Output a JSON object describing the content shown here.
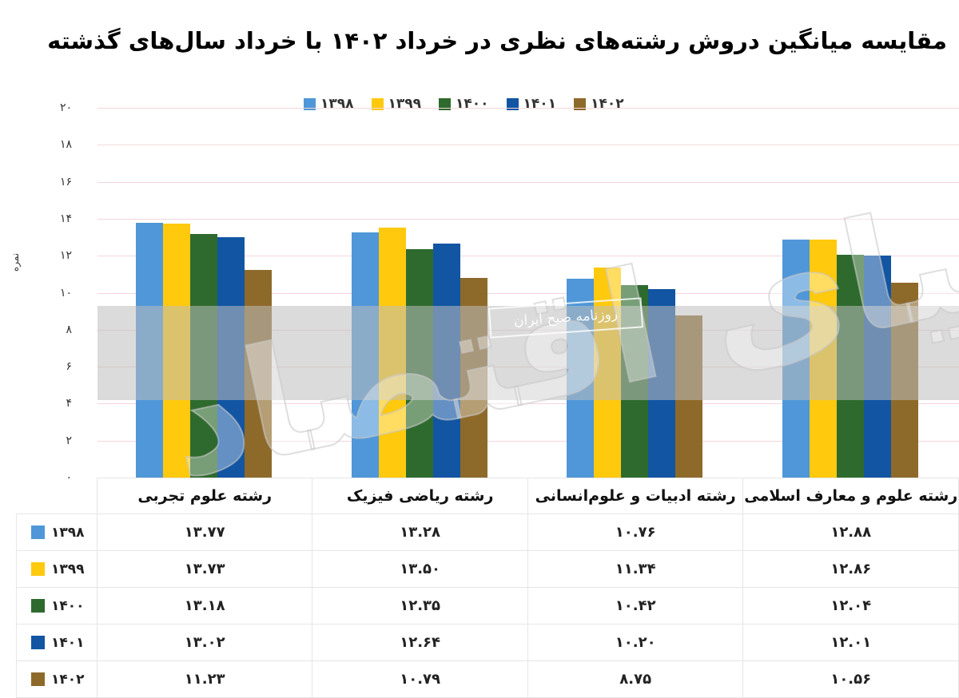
{
  "title": "مقایسه میانگین دروش رشته‌های نظری در خرداد ۱۴۰۲ با خرداد سال‌های گذشته",
  "watermarks": {
    "large_text": "دنیای اقتصاد",
    "stamp_text": "روزنامه صبح ایران"
  },
  "legend": [
    {
      "label": "۱۳۹۸",
      "color": "#4f97d8"
    },
    {
      "label": "۱۳۹۹",
      "color": "#ffc90e"
    },
    {
      "label": "۱۴۰۰",
      "color": "#2e6a2e"
    },
    {
      "label": "۱۴۰۱",
      "color": "#1155a3"
    },
    {
      "label": "۱۴۰۲",
      "color": "#8e6a2a"
    }
  ],
  "y_axis": {
    "label": "نمره",
    "ticks": [
      "۰",
      "۲",
      "۴",
      "۶",
      "۸",
      "۱۰",
      "۱۲",
      "۱۴",
      "۱۶",
      "۱۸",
      "۲۰"
    ]
  },
  "table": {
    "headers": [
      "رشته علوم تجربی",
      "رشته ریاضی فیزیک",
      "رشته ادبیات و علوم‌انسانی",
      "رشته علوم و معارف اسلامی"
    ],
    "rows": [
      {
        "year": "۱۳۹۸",
        "values": [
          "۱۳.۷۷",
          "۱۳.۲۸",
          "۱۰.۷۶",
          "۱۲.۸۸"
        ]
      },
      {
        "year": "۱۳۹۹",
        "values": [
          "۱۳.۷۳",
          "۱۳.۵۰",
          "۱۱.۳۴",
          "۱۲.۸۶"
        ]
      },
      {
        "year": "۱۴۰۰",
        "values": [
          "۱۳.۱۸",
          "۱۲.۳۵",
          "۱۰.۴۲",
          "۱۲.۰۴"
        ]
      },
      {
        "year": "۱۴۰۱",
        "values": [
          "۱۳.۰۲",
          "۱۲.۶۴",
          "۱۰.۲۰",
          "۱۲.۰۱"
        ]
      },
      {
        "year": "۱۴۰۲",
        "values": [
          "۱۱.۲۳",
          "۱۰.۷۹",
          "۸.۷۵",
          "۱۰.۵۶"
        ]
      }
    ]
  },
  "chart_data": {
    "type": "bar",
    "title": "مقایسه میانگین دروش رشته‌های نظری در خرداد ۱۴۰۲ با خرداد سال‌های گذشته",
    "xlabel": "",
    "ylabel": "نمره",
    "ylim": [
      0,
      20
    ],
    "yticks": [
      0,
      2,
      4,
      6,
      8,
      10,
      12,
      14,
      16,
      18,
      20
    ],
    "grid": true,
    "legend_position": "top",
    "categories": [
      "رشته علوم تجربی",
      "رشته ریاضی فیزیک",
      "رشته ادبیات و علوم‌انسانی",
      "رشته علوم و معارف اسلامی"
    ],
    "series": [
      {
        "name": "1398",
        "color": "#4f97d8",
        "values": [
          13.77,
          13.28,
          10.76,
          12.88
        ]
      },
      {
        "name": "1399",
        "color": "#ffc90e",
        "values": [
          13.73,
          13.5,
          11.34,
          12.86
        ]
      },
      {
        "name": "1400",
        "color": "#2e6a2e",
        "values": [
          13.18,
          12.35,
          10.42,
          12.04
        ]
      },
      {
        "name": "1401",
        "color": "#1155a3",
        "values": [
          13.02,
          12.64,
          10.2,
          12.01
        ]
      },
      {
        "name": "1402",
        "color": "#8e6a2a",
        "values": [
          11.23,
          10.79,
          8.75,
          10.56
        ]
      }
    ],
    "data_table_below": true
  }
}
